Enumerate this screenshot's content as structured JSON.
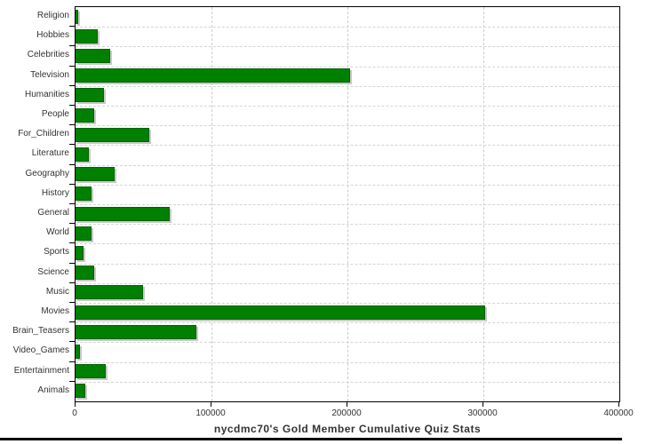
{
  "chart_data": {
    "type": "bar",
    "orientation": "horizontal",
    "title": "nycdmc70's Gold Member Cumulative Quiz Stats",
    "categories": [
      "Religion",
      "Hobbies",
      "Celebrities",
      "Television",
      "Humanities",
      "People",
      "For_Children",
      "Literature",
      "Geography",
      "History",
      "General",
      "World",
      "Sports",
      "Science",
      "Music",
      "Movies",
      "Brain_Teasers",
      "Video_Games",
      "Entertainment",
      "Animals"
    ],
    "values": [
      2000,
      16500,
      25500,
      202000,
      21000,
      14000,
      54500,
      10000,
      28500,
      12000,
      69000,
      11500,
      6000,
      14000,
      49500,
      301000,
      89000,
      3500,
      22500,
      7000
    ],
    "xlim": [
      0,
      400000
    ],
    "x_ticks": [
      0,
      100000,
      200000,
      300000,
      400000
    ],
    "x_tick_labels": [
      "0",
      "100000",
      "200000",
      "300000",
      "400000"
    ],
    "grid": "dashed",
    "legend": "none",
    "bar_color": "#008000",
    "bar_border_color": "#046204",
    "shadow_color": "#c9c9c9",
    "grid_color": "#cccccc",
    "axis_color": "#000000",
    "text_color": "#333333"
  }
}
